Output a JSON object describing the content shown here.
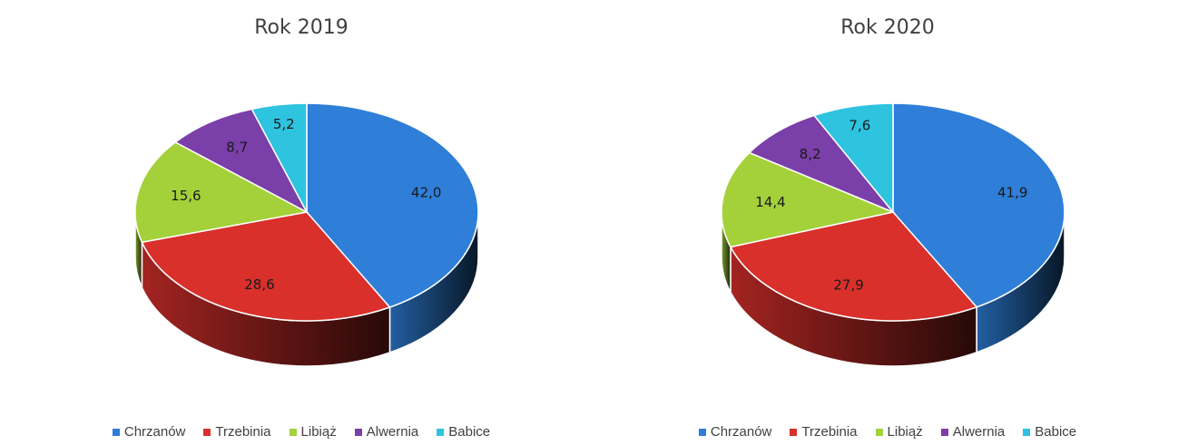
{
  "categories": [
    "Chrzanów",
    "Trzebinia",
    "Libiąż",
    "Alwernia",
    "Babice"
  ],
  "colors": [
    "#2f7ed8",
    "#d9302c",
    "#a4d13a",
    "#7a3fa8",
    "#2ec3df"
  ],
  "chart_data": [
    {
      "type": "pie",
      "title": "Rok 2019",
      "categories": [
        "Chrzanów",
        "Trzebinia",
        "Libiąż",
        "Alwernia",
        "Babice"
      ],
      "values": [
        42.0,
        28.6,
        15.6,
        8.7,
        5.2
      ],
      "labels": [
        "42,0",
        "28,6",
        "15,6",
        "8,7",
        "5,2"
      ],
      "legend": "bottom",
      "style": "3d"
    },
    {
      "type": "pie",
      "title": "Rok 2020",
      "categories": [
        "Chrzanów",
        "Trzebinia",
        "Libiąż",
        "Alwernia",
        "Babice"
      ],
      "values": [
        41.9,
        27.9,
        14.4,
        8.2,
        7.6
      ],
      "labels": [
        "41,9",
        "27,9",
        "14,4",
        "8,2",
        "7,6"
      ],
      "legend": "bottom",
      "style": "3d"
    }
  ]
}
